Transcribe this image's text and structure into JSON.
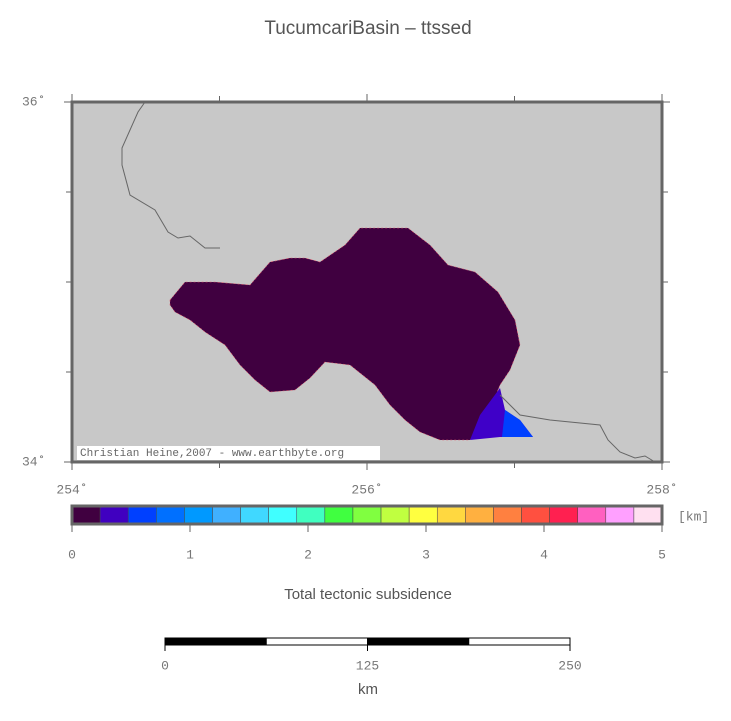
{
  "title": "TucumcariBasin – ttssed",
  "map": {
    "lon_ticks": [
      {
        "value": 254,
        "label": "254˚"
      },
      {
        "value": 256,
        "label": "256˚"
      },
      {
        "value": 258,
        "label": "258˚"
      }
    ],
    "lat_ticks": [
      {
        "value": 34,
        "label": "34˚"
      },
      {
        "value": 36,
        "label": "36˚"
      }
    ],
    "credit": "Christian Heine,2007 - www.earthbyte.org"
  },
  "colorbar": {
    "ticks": [
      0,
      1,
      2,
      3,
      4,
      5
    ],
    "unit": "[km]",
    "label": "Total tectonic subsidence",
    "colors": [
      "#400040",
      "#4000c0",
      "#0040ff",
      "#0070ff",
      "#0099ff",
      "#40b0ff",
      "#40d8ff",
      "#40ffff",
      "#40ffc0",
      "#40ff40",
      "#80ff40",
      "#c0ff40",
      "#ffff40",
      "#ffd840",
      "#ffb040",
      "#ff8040",
      "#ff5040",
      "#ff2050",
      "#ff60c0",
      "#ffa0ff",
      "#ffe0f0"
    ]
  },
  "scalebar": {
    "ticks": [
      0,
      125,
      250
    ],
    "unit": "km"
  }
}
